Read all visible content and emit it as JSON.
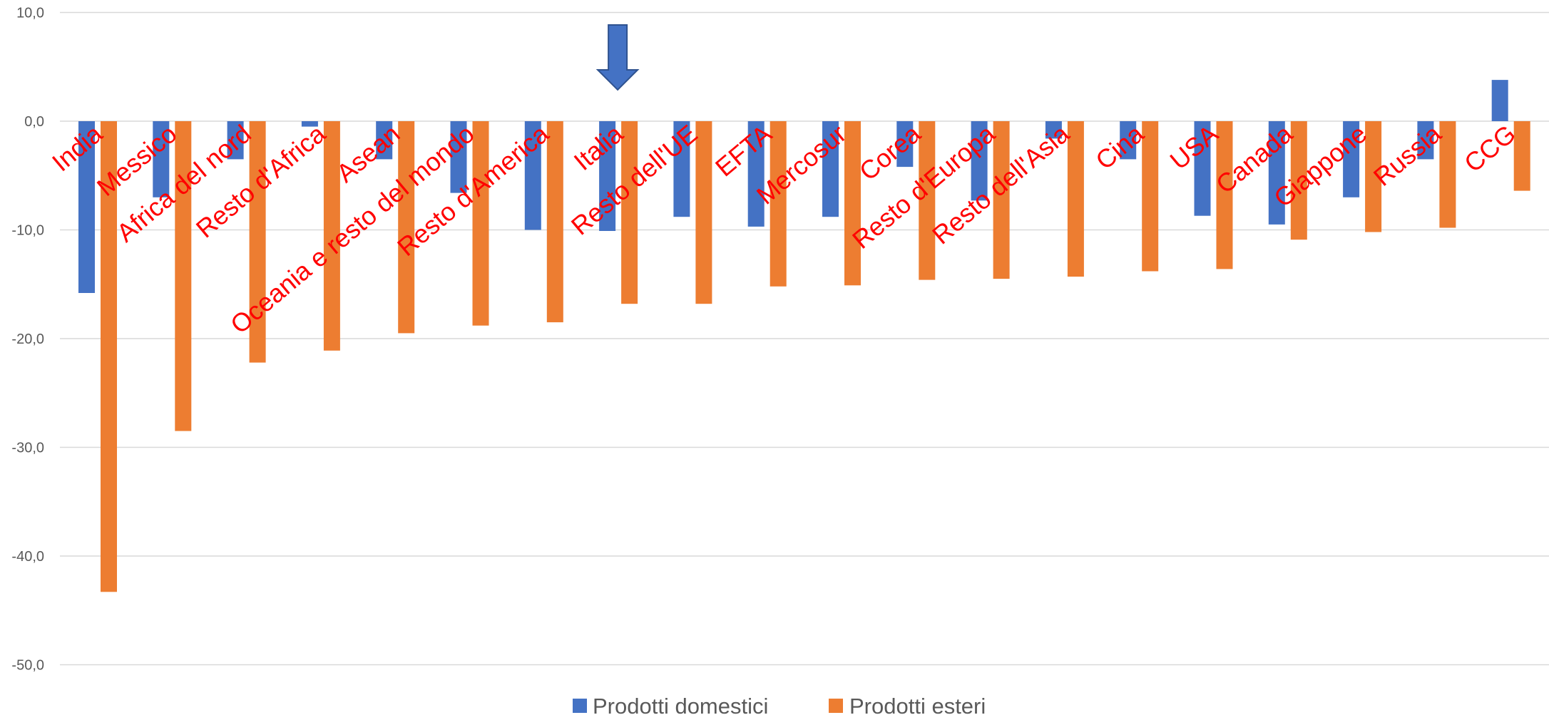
{
  "chart_data": {
    "type": "bar",
    "title": "",
    "xlabel": "",
    "ylabel": "",
    "ylim": [
      -50,
      10
    ],
    "yticks": [
      10,
      0,
      -10,
      -20,
      -30,
      -40,
      -50
    ],
    "ytick_labels": [
      "10,0",
      "0,0",
      "-10,0",
      "-20,0",
      "-30,0",
      "-40,0",
      "-50,0"
    ],
    "grid": true,
    "legend_position": "bottom",
    "categories": [
      "India",
      "Messico",
      "Africa del nord",
      "Resto d'Africa",
      "Asean",
      "Oceania e resto del mondo",
      "Resto d'America",
      "Italia",
      "Resto dell'UE",
      "EFTA",
      "Mercosur",
      "Corea",
      "Resto d'Europa",
      "Resto dell'Asia",
      "Cina",
      "USA",
      "Canada",
      "Giappone",
      "Russia",
      "CCG"
    ],
    "series": [
      {
        "name": "Prodotti domestici",
        "color": "#4472C4",
        "values": [
          -15.8,
          -7.0,
          -3.5,
          -0.5,
          -3.5,
          -6.6,
          -10.0,
          -10.1,
          -8.8,
          -9.7,
          -8.8,
          -4.2,
          -7.3,
          -1.6,
          -3.5,
          -8.7,
          -9.5,
          -7.0,
          -3.5,
          3.8
        ]
      },
      {
        "name": "Prodotti esteri",
        "color": "#ED7D31",
        "values": [
          -43.3,
          -28.5,
          -22.2,
          -21.1,
          -19.5,
          -18.8,
          -18.5,
          -16.8,
          -16.8,
          -15.2,
          -15.1,
          -14.6,
          -14.5,
          -14.3,
          -13.8,
          -13.6,
          -10.9,
          -10.2,
          -9.8,
          -6.4
        ]
      }
    ],
    "label_color": "#FF0000",
    "highlight_arrow": {
      "category": "Italia",
      "color": "#4472C4"
    }
  }
}
